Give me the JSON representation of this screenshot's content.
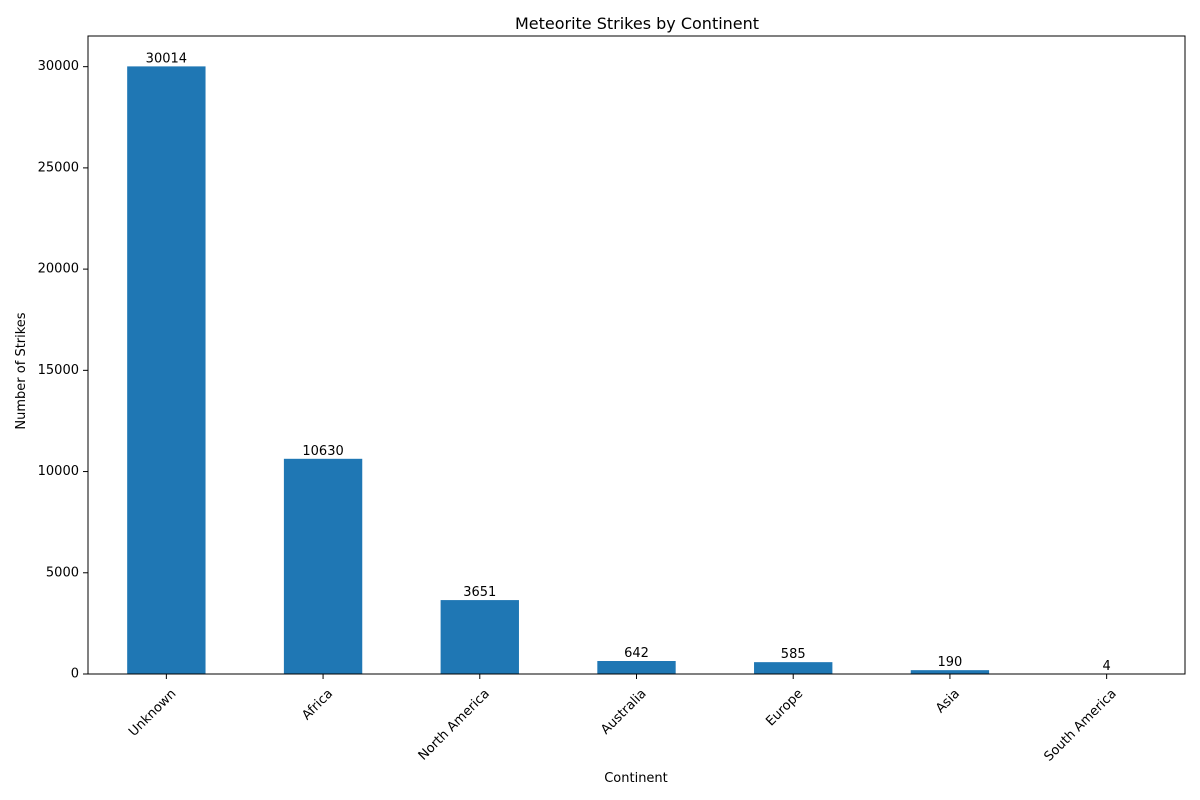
{
  "chart_data": {
    "type": "bar",
    "title": "Meteorite Strikes by Continent",
    "xlabel": "Continent",
    "ylabel": "Number of Strikes",
    "categories": [
      "Unknown",
      "Africa",
      "North America",
      "Australia",
      "Europe",
      "Asia",
      "South America"
    ],
    "values": [
      30014,
      10630,
      3651,
      642,
      585,
      190,
      4
    ],
    "ylim": [
      0,
      31515
    ],
    "yticks": [
      0,
      5000,
      10000,
      15000,
      20000,
      25000,
      30000
    ],
    "bar_color": "#1f77b4",
    "grid": false,
    "legend": "none",
    "xtick_rotation": 45
  }
}
